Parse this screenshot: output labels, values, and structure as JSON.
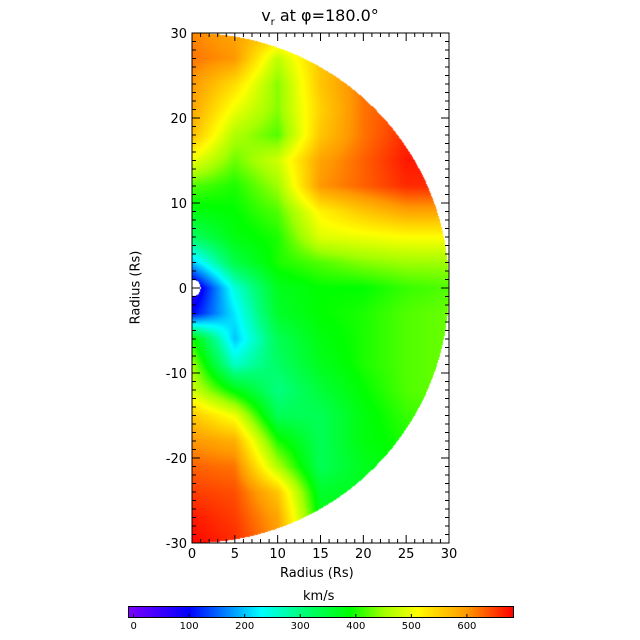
{
  "chart_data": {
    "type": "heatmap",
    "title_main": "v",
    "title_sub": "r",
    "title_rest": " at φ=180.0°",
    "xlabel": "Radius (Rs)",
    "ylabel": "Radius (Rs)",
    "xlim": [
      0,
      30
    ],
    "ylim": [
      -30,
      30
    ],
    "x_ticks": [
      "0",
      "5",
      "10",
      "15",
      "20",
      "25",
      "30"
    ],
    "y_ticks": [
      "30",
      "20",
      "10",
      "0",
      "-10",
      "-20",
      "-30"
    ],
    "domain": "half-disk, radius 1 to 30 Rs",
    "grid_x": [
      0,
      5,
      10,
      15,
      20,
      25,
      30
    ],
    "grid_y": [
      30,
      27,
      24,
      21,
      18,
      15,
      12,
      9,
      6,
      3,
      0,
      -3,
      -6,
      -9,
      -12,
      -15,
      -18,
      -21,
      -24,
      -27,
      -30
    ],
    "values": [
      [
        610,
        590,
        560,
        560,
        600,
        620,
        640
      ],
      [
        620,
        600,
        470,
        560,
        600,
        630,
        650
      ],
      [
        600,
        540,
        440,
        560,
        620,
        640,
        650
      ],
      [
        590,
        500,
        440,
        550,
        620,
        650,
        660
      ],
      [
        570,
        460,
        420,
        560,
        620,
        660,
        670
      ],
      [
        500,
        430,
        480,
        590,
        630,
        670,
        670
      ],
      [
        420,
        400,
        450,
        600,
        630,
        660,
        660
      ],
      [
        380,
        390,
        420,
        520,
        560,
        590,
        590
      ],
      [
        320,
        380,
        400,
        490,
        500,
        510,
        510
      ],
      [
        200,
        340,
        400,
        420,
        440,
        450,
        450
      ],
      [
        50,
        250,
        370,
        390,
        390,
        410,
        420
      ],
      [
        100,
        220,
        360,
        390,
        400,
        420,
        430
      ],
      [
        400,
        200,
        330,
        380,
        400,
        420,
        430
      ],
      [
        450,
        260,
        320,
        370,
        400,
        420,
        430
      ],
      [
        480,
        380,
        300,
        350,
        390,
        420,
        430
      ],
      [
        560,
        500,
        330,
        330,
        380,
        410,
        420
      ],
      [
        600,
        580,
        400,
        330,
        380,
        400,
        410
      ],
      [
        630,
        620,
        460,
        330,
        370,
        390,
        400
      ],
      [
        650,
        640,
        560,
        360,
        370,
        380,
        390
      ],
      [
        670,
        650,
        590,
        380,
        370,
        380,
        390
      ],
      [
        680,
        660,
        600,
        400,
        380,
        380,
        390
      ]
    ],
    "colorbar": {
      "label": "km/s",
      "range": [
        -10,
        683
      ],
      "ticks": [
        "0",
        "100",
        "200",
        "300",
        "400",
        "500",
        "600"
      ],
      "tick_values": [
        0,
        100,
        200,
        300,
        400,
        500,
        600
      ],
      "stops": [
        {
          "v": -10,
          "c": "#7f00ff"
        },
        {
          "v": 100,
          "c": "#0000ff"
        },
        {
          "v": 230,
          "c": "#00ffff"
        },
        {
          "v": 300,
          "c": "#00ff80"
        },
        {
          "v": 390,
          "c": "#00ff00"
        },
        {
          "v": 450,
          "c": "#a0ff00"
        },
        {
          "v": 510,
          "c": "#ffff00"
        },
        {
          "v": 600,
          "c": "#ff9900"
        },
        {
          "v": 683,
          "c": "#ff0000"
        }
      ]
    }
  }
}
